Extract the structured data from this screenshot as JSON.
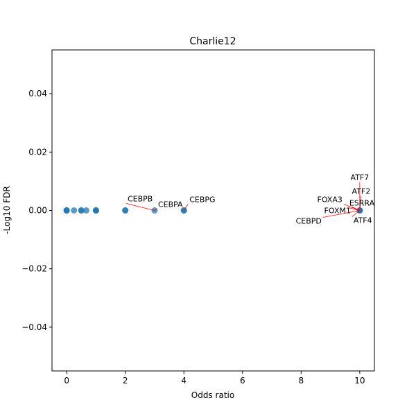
{
  "chart_data": {
    "type": "scatter",
    "title": "Charlie12",
    "xlabel": "Odds ratio",
    "ylabel": "-Log10 FDR",
    "xlim": [
      -0.5,
      10.5
    ],
    "ylim": [
      -0.055,
      0.055
    ],
    "xticks": [
      0,
      2,
      4,
      6,
      8,
      10
    ],
    "xtick_labels": [
      "0",
      "2",
      "4",
      "6",
      "8",
      "10"
    ],
    "yticks": [
      0.04,
      0.02,
      0.0,
      -0.02,
      -0.04
    ],
    "ytick_labels": [
      "0.04",
      "0.02",
      "0.00",
      "−0.02",
      "−0.04"
    ],
    "grid": false,
    "marker_color": "#1f77b4",
    "annotation_line_color": "#ff0000",
    "points": [
      {
        "x": 0,
        "y": 0
      },
      {
        "x": 0,
        "y": 0
      },
      {
        "x": 0,
        "y": 0
      },
      {
        "x": 0.25,
        "y": 0
      },
      {
        "x": 0.5,
        "y": 0
      },
      {
        "x": 0.5,
        "y": 0
      },
      {
        "x": 0.67,
        "y": 0
      },
      {
        "x": 1,
        "y": 0
      },
      {
        "x": 1,
        "y": 0
      },
      {
        "x": 1,
        "y": 0
      },
      {
        "x": 2,
        "y": 0
      },
      {
        "x": 2,
        "y": 0
      },
      {
        "x": 3,
        "y": 0
      },
      {
        "x": 4,
        "y": 0
      },
      {
        "x": 4,
        "y": 0
      },
      {
        "x": 10,
        "y": 0
      },
      {
        "x": 10,
        "y": 0
      },
      {
        "x": 10,
        "y": 0
      }
    ],
    "annotations": [
      {
        "label": "CEBPB",
        "x": 3,
        "y": 0
      },
      {
        "label": "CEBPA",
        "x": 3,
        "y": 0
      },
      {
        "label": "CEBPG",
        "x": 4,
        "y": 0
      },
      {
        "label": "ATF7",
        "x": 10,
        "y": 0
      },
      {
        "label": "ATF2",
        "x": 10,
        "y": 0
      },
      {
        "label": "FOXA3",
        "x": 10,
        "y": 0
      },
      {
        "label": "ESRRA",
        "x": 10,
        "y": 0
      },
      {
        "label": "FOXM1",
        "x": 10,
        "y": 0
      },
      {
        "label": "CEBPD",
        "x": 10,
        "y": 0
      },
      {
        "label": "ATF4",
        "x": 10,
        "y": 0
      }
    ]
  }
}
